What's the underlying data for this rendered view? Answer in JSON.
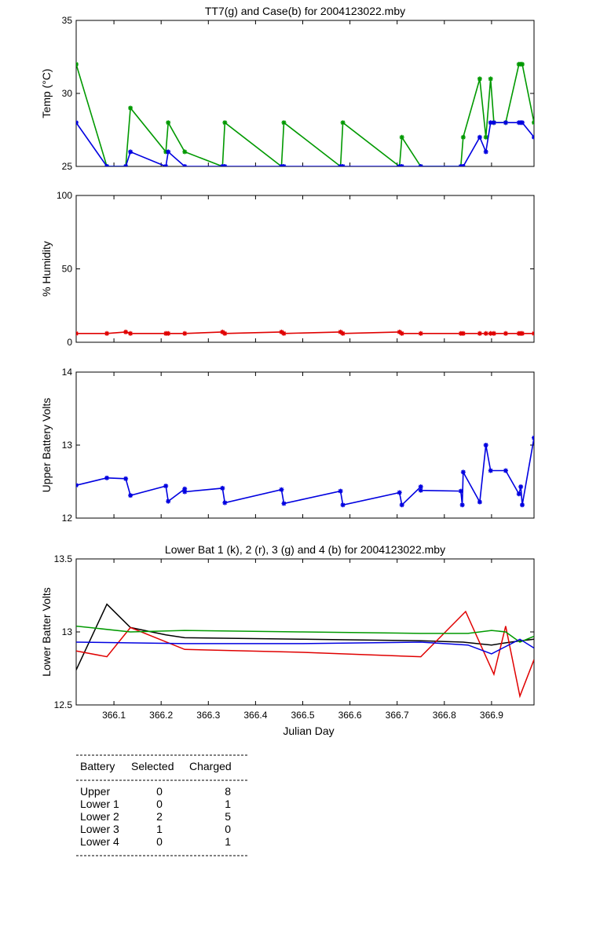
{
  "colors": {
    "k": "#000000",
    "r": "#e00000",
    "g": "#009900",
    "b": "#0000e0"
  },
  "xlabel": "Julian Day",
  "xticks": [
    "366.1",
    "366.2",
    "366.3",
    "366.4",
    "366.5",
    "366.6",
    "366.7",
    "366.8",
    "366.9"
  ],
  "xtick_values": [
    366.1,
    366.2,
    366.3,
    366.4,
    366.5,
    366.6,
    366.7,
    366.8,
    366.9
  ],
  "xlim": [
    366.02,
    366.99
  ],
  "chart_data": [
    {
      "id": "temp",
      "type": "line",
      "title": "TT7(g) and Case(b) for 2004123022.mby",
      "ylabel": "Temp  (°C)",
      "ylim": [
        25,
        35
      ],
      "yticks": [
        25,
        30,
        35
      ],
      "markers": true,
      "series": [
        {
          "color": "g",
          "x": [
            366.02,
            366.085,
            366.125,
            366.135,
            366.21,
            366.215,
            366.25,
            366.33,
            366.335,
            366.455,
            366.46,
            366.58,
            366.585,
            366.705,
            366.71,
            366.75,
            366.835,
            366.84,
            366.875,
            366.888,
            366.898,
            366.905,
            366.93,
            366.958,
            366.962,
            366.965,
            366.99
          ],
          "y": [
            32,
            25,
            25,
            29,
            26,
            28,
            26,
            25,
            28,
            25,
            28,
            25,
            28,
            25,
            27,
            25,
            25,
            27,
            31,
            27,
            31,
            28,
            28,
            32,
            32,
            32,
            28
          ]
        },
        {
          "color": "b",
          "x": [
            366.02,
            366.085,
            366.125,
            366.135,
            366.21,
            366.215,
            366.25,
            366.33,
            366.335,
            366.455,
            366.46,
            366.58,
            366.585,
            366.705,
            366.71,
            366.75,
            366.835,
            366.84,
            366.875,
            366.888,
            366.898,
            366.905,
            366.93,
            366.958,
            366.962,
            366.965,
            366.99
          ],
          "y": [
            28,
            25,
            25,
            26,
            25,
            26,
            25,
            25,
            25,
            25,
            25,
            25,
            25,
            25,
            25,
            25,
            25,
            25,
            27,
            26,
            28,
            28,
            28,
            28,
            28,
            28,
            27
          ]
        }
      ]
    },
    {
      "id": "humidity",
      "type": "line",
      "title": "",
      "ylabel": "% Humidity",
      "ylim": [
        0,
        100
      ],
      "yticks": [
        0,
        50,
        100
      ],
      "markers": true,
      "series": [
        {
          "color": "r",
          "x": [
            366.02,
            366.085,
            366.125,
            366.135,
            366.21,
            366.215,
            366.25,
            366.33,
            366.335,
            366.455,
            366.46,
            366.58,
            366.585,
            366.705,
            366.71,
            366.75,
            366.835,
            366.84,
            366.875,
            366.888,
            366.898,
            366.905,
            366.93,
            366.958,
            366.962,
            366.965,
            366.99
          ],
          "y": [
            6,
            6,
            7,
            6,
            6,
            6,
            6,
            7,
            6,
            7,
            6,
            7,
            6,
            7,
            6,
            6,
            6,
            6,
            6,
            6,
            6,
            6,
            6,
            6,
            6,
            6,
            6
          ]
        }
      ]
    },
    {
      "id": "upper-battery",
      "type": "line",
      "title": "",
      "ylabel": "Upper Battery Volts",
      "ylim": [
        12,
        14
      ],
      "yticks": [
        12,
        13,
        14
      ],
      "markers": true,
      "series": [
        {
          "color": "b",
          "x": [
            366.02,
            366.085,
            366.125,
            366.135,
            366.21,
            366.215,
            366.25,
            366.25,
            366.33,
            366.335,
            366.455,
            366.46,
            366.58,
            366.585,
            366.705,
            366.71,
            366.75,
            366.75,
            366.835,
            366.838,
            366.84,
            366.875,
            366.888,
            366.898,
            366.93,
            366.958,
            366.962,
            366.965,
            366.99
          ],
          "y": [
            12.45,
            12.55,
            12.54,
            12.31,
            12.44,
            12.23,
            12.4,
            12.36,
            12.41,
            12.21,
            12.39,
            12.2,
            12.37,
            12.18,
            12.35,
            12.18,
            12.43,
            12.38,
            12.37,
            12.18,
            12.63,
            12.22,
            13.0,
            12.65,
            12.65,
            12.33,
            12.43,
            12.18,
            13.1
          ]
        }
      ]
    },
    {
      "id": "lower-battery",
      "type": "line",
      "title": "Lower Bat 1 (k), 2 (r), 3 (g) and 4 (b) for 2004123022.mby",
      "ylabel": "Lower Batter Volts",
      "ylim": [
        12.5,
        13.5
      ],
      "yticks": [
        12.5,
        13,
        13.5
      ],
      "markers": false,
      "series": [
        {
          "color": "k",
          "x": [
            366.02,
            366.085,
            366.135,
            366.21,
            366.25,
            366.5,
            366.75,
            366.84,
            366.9,
            366.94,
            366.99
          ],
          "y": [
            12.74,
            13.19,
            13.03,
            12.98,
            12.96,
            12.95,
            12.94,
            12.93,
            12.91,
            12.93,
            12.95
          ]
        },
        {
          "color": "r",
          "x": [
            366.02,
            366.085,
            366.135,
            366.25,
            366.5,
            366.75,
            366.845,
            366.905,
            366.93,
            366.96,
            366.99
          ],
          "y": [
            12.87,
            12.83,
            13.03,
            12.88,
            12.86,
            12.83,
            13.14,
            12.71,
            13.04,
            12.56,
            12.81
          ]
        },
        {
          "color": "g",
          "x": [
            366.02,
            366.135,
            366.25,
            366.5,
            366.75,
            366.85,
            366.9,
            366.93,
            366.96,
            366.99
          ],
          "y": [
            13.04,
            13.0,
            13.01,
            13.0,
            12.99,
            12.99,
            13.01,
            13.0,
            12.93,
            12.97
          ]
        },
        {
          "color": "b",
          "x": [
            366.02,
            366.25,
            366.5,
            366.75,
            366.85,
            366.9,
            366.96,
            366.99
          ],
          "y": [
            12.93,
            12.92,
            12.92,
            12.93,
            12.91,
            12.85,
            12.95,
            12.89
          ]
        }
      ]
    }
  ],
  "battery_table": {
    "headers": [
      "Battery",
      "Selected",
      "Charged"
    ],
    "rows": [
      {
        "battery": "Upper",
        "selected": "0",
        "charged": "8"
      },
      {
        "battery": "Lower 1",
        "selected": "0",
        "charged": "1"
      },
      {
        "battery": "Lower 2",
        "selected": "2",
        "charged": "5"
      },
      {
        "battery": "Lower 3",
        "selected": "1",
        "charged": "0"
      },
      {
        "battery": "Lower 4",
        "selected": "0",
        "charged": "1"
      }
    ]
  }
}
